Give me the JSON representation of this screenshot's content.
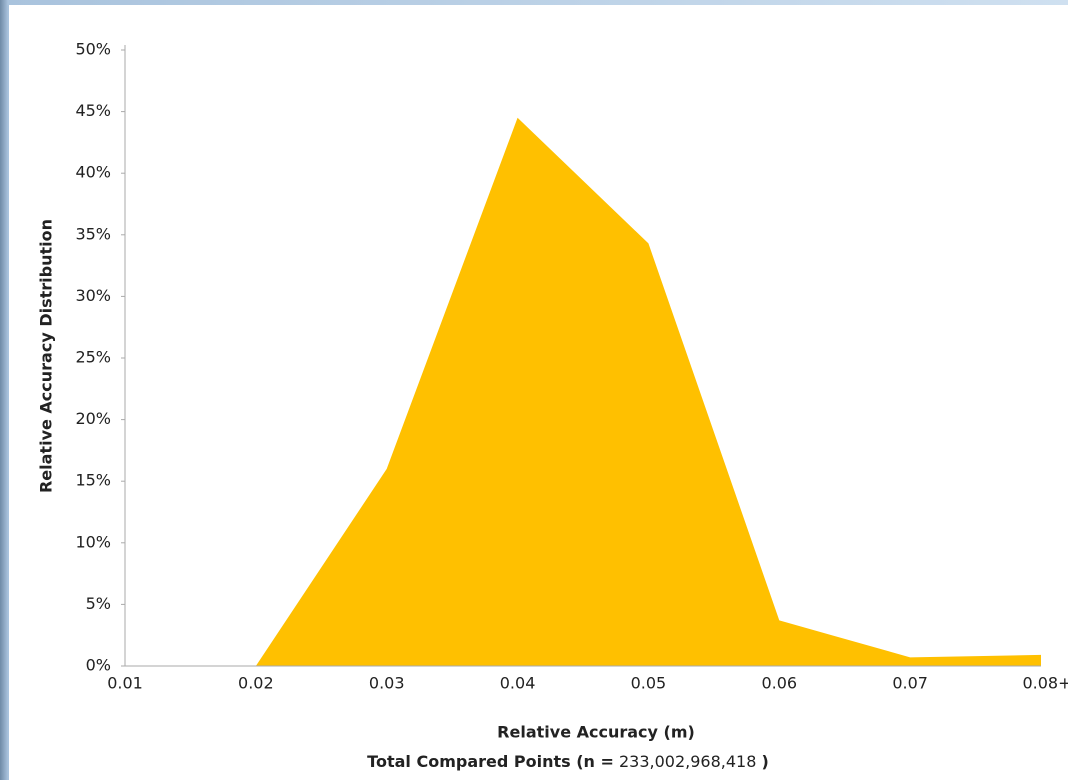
{
  "chart_data": {
    "type": "area",
    "categories": [
      "0.01",
      "0.02",
      "0.03",
      "0.04",
      "0.05",
      "0.06",
      "0.07",
      "0.08+"
    ],
    "values": [
      0,
      0,
      16,
      44.5,
      34.3,
      3.7,
      0.7,
      0.9
    ],
    "color": "#ffc000",
    "ylabel": "Relative Accuracy Distribution",
    "xlabel": "Relative Accuracy (m)",
    "x_note": {
      "prefix": "Total Compared Points (n =",
      "count": "233,002,968,418",
      "suffix": ")"
    },
    "ylim": [
      0,
      50
    ],
    "yticks": [
      {
        "value": 0,
        "label": "0%"
      },
      {
        "value": 5,
        "label": "5%"
      },
      {
        "value": 10,
        "label": "10%"
      },
      {
        "value": 15,
        "label": "15%"
      },
      {
        "value": 20,
        "label": "20%"
      },
      {
        "value": 25,
        "label": "25%"
      },
      {
        "value": 30,
        "label": "30%"
      },
      {
        "value": 35,
        "label": "35%"
      },
      {
        "value": 40,
        "label": "40%"
      },
      {
        "value": 45,
        "label": "45%"
      },
      {
        "value": 50,
        "label": "50%"
      }
    ],
    "grid": false
  }
}
